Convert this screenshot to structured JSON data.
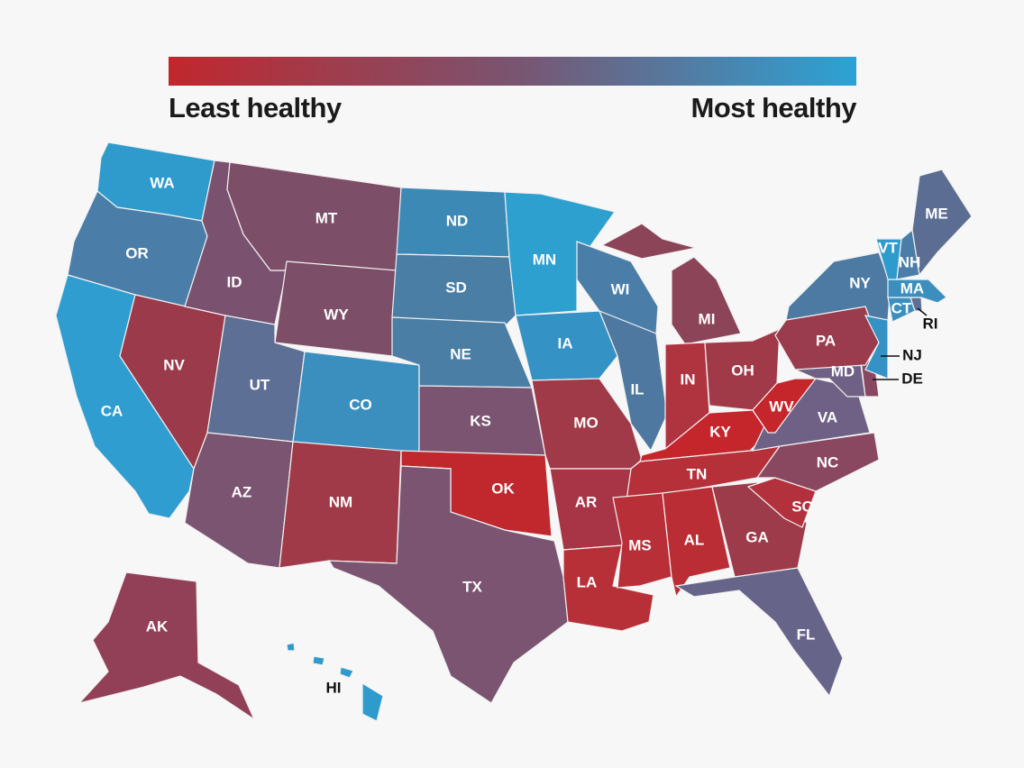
{
  "legend": {
    "least_label": "Least healthy",
    "most_label": "Most healthy",
    "gradient": [
      "#c1272d",
      "#7a5470",
      "#2ba3d5"
    ]
  },
  "states": [
    {
      "abbr": "WA",
      "color": "#2e9bcc"
    },
    {
      "abbr": "OR",
      "color": "#4a7ea8"
    },
    {
      "abbr": "CA",
      "color": "#2f9dd0"
    },
    {
      "abbr": "NV",
      "color": "#9b3a4a"
    },
    {
      "abbr": "ID",
      "color": "#7a5270"
    },
    {
      "abbr": "MT",
      "color": "#7d4e68"
    },
    {
      "abbr": "WY",
      "color": "#7d4e68"
    },
    {
      "abbr": "UT",
      "color": "#5e6f95"
    },
    {
      "abbr": "CO",
      "color": "#3a8fbf"
    },
    {
      "abbr": "AZ",
      "color": "#7a5470"
    },
    {
      "abbr": "NM",
      "color": "#a03a48"
    },
    {
      "abbr": "ND",
      "color": "#3d89b6"
    },
    {
      "abbr": "SD",
      "color": "#4a7ea5"
    },
    {
      "abbr": "NE",
      "color": "#4a7ea5"
    },
    {
      "abbr": "KS",
      "color": "#7a5470"
    },
    {
      "abbr": "OK",
      "color": "#c0282e"
    },
    {
      "abbr": "TX",
      "color": "#7a5470"
    },
    {
      "abbr": "MN",
      "color": "#2ea0d0"
    },
    {
      "abbr": "IA",
      "color": "#3592c4"
    },
    {
      "abbr": "MO",
      "color": "#a03a48"
    },
    {
      "abbr": "AR",
      "color": "#a83545"
    },
    {
      "abbr": "LA",
      "color": "#b73038"
    },
    {
      "abbr": "WI",
      "color": "#4a7ea8"
    },
    {
      "abbr": "IL",
      "color": "#4f78a0"
    },
    {
      "abbr": "MI",
      "color": "#8c4458"
    },
    {
      "abbr": "IN",
      "color": "#b03340"
    },
    {
      "abbr": "OH",
      "color": "#a03a48"
    },
    {
      "abbr": "KY",
      "color": "#c4262c"
    },
    {
      "abbr": "TN",
      "color": "#b6303a"
    },
    {
      "abbr": "MS",
      "color": "#b92f37"
    },
    {
      "abbr": "AL",
      "color": "#ba2d35"
    },
    {
      "abbr": "GA",
      "color": "#9e3b4a"
    },
    {
      "abbr": "FL",
      "color": "#67648a"
    },
    {
      "abbr": "SC",
      "color": "#b3313d"
    },
    {
      "abbr": "NC",
      "color": "#8a4860"
    },
    {
      "abbr": "VA",
      "color": "#6e6185"
    },
    {
      "abbr": "WV",
      "color": "#c4262c"
    },
    {
      "abbr": "MD",
      "color": "#6e6185"
    },
    {
      "abbr": "DE",
      "color": "#8a4860"
    },
    {
      "abbr": "PA",
      "color": "#9a3c4d"
    },
    {
      "abbr": "NY",
      "color": "#4d7aa3"
    },
    {
      "abbr": "NJ",
      "color": "#3592c4"
    },
    {
      "abbr": "CT",
      "color": "#3a8fbf"
    },
    {
      "abbr": "RI",
      "color": "#5e6f95"
    },
    {
      "abbr": "MA",
      "color": "#3a8fbf"
    },
    {
      "abbr": "VT",
      "color": "#2e9bcc"
    },
    {
      "abbr": "NH",
      "color": "#4a7ea8"
    },
    {
      "abbr": "ME",
      "color": "#5c6d93"
    },
    {
      "abbr": "AK",
      "color": "#914058"
    },
    {
      "abbr": "HI",
      "color": "#2e9bcc"
    }
  ]
}
